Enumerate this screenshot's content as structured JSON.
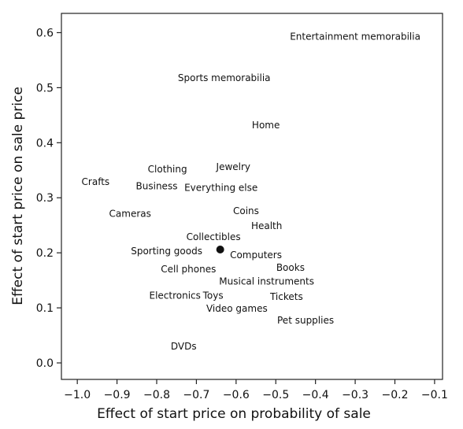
{
  "chart_data": {
    "type": "scatter",
    "title": "",
    "xlabel": "Effect of start price on probability of sale",
    "ylabel": "Effect of start price on sale price",
    "xlim": [
      -1.04,
      -0.08
    ],
    "ylim": [
      -0.03,
      0.635
    ],
    "xticks": [
      -1.0,
      -0.9,
      -0.8,
      -0.7,
      -0.6,
      -0.5,
      -0.4,
      -0.3,
      -0.2,
      -0.1
    ],
    "xtick_labels": [
      "−1.0",
      "−0.9",
      "−0.8",
      "−0.7",
      "−0.6",
      "−0.5",
      "−0.4",
      "−0.3",
      "−0.2",
      "−0.1"
    ],
    "yticks": [
      0.0,
      0.1,
      0.2,
      0.3,
      0.4,
      0.5,
      0.6
    ],
    "ytick_labels": [
      "0.0",
      "0.1",
      "0.2",
      "0.3",
      "0.4",
      "0.5",
      "0.6"
    ],
    "grid": false,
    "marker": {
      "x": -0.64,
      "y": 0.206,
      "color": "#111111"
    },
    "points": [
      {
        "label": "Entertainment memorabilia",
        "x": -0.3,
        "y": 0.593
      },
      {
        "label": "Sports memorabilia",
        "x": -0.63,
        "y": 0.518
      },
      {
        "label": "Home",
        "x": -0.525,
        "y": 0.432
      },
      {
        "label": "Jewelry",
        "x": -0.607,
        "y": 0.356
      },
      {
        "label": "Clothing",
        "x": -0.773,
        "y": 0.352
      },
      {
        "label": "Crafts",
        "x": -0.954,
        "y": 0.329
      },
      {
        "label": "Business",
        "x": -0.8,
        "y": 0.321
      },
      {
        "label": "Everything else",
        "x": -0.638,
        "y": 0.318
      },
      {
        "label": "Coins",
        "x": -0.575,
        "y": 0.276
      },
      {
        "label": "Cameras",
        "x": -0.867,
        "y": 0.271
      },
      {
        "label": "Health",
        "x": -0.523,
        "y": 0.249
      },
      {
        "label": "Collectibles",
        "x": -0.657,
        "y": 0.229
      },
      {
        "label": "Sporting goods",
        "x": -0.775,
        "y": 0.203
      },
      {
        "label": "Computers",
        "x": -0.55,
        "y": 0.196
      },
      {
        "label": "Books",
        "x": -0.463,
        "y": 0.173
      },
      {
        "label": "Cell phones",
        "x": -0.72,
        "y": 0.17
      },
      {
        "label": "Musical instruments",
        "x": -0.523,
        "y": 0.148
      },
      {
        "label": "Electronics",
        "x": -0.754,
        "y": 0.122
      },
      {
        "label": "Toys",
        "x": -0.658,
        "y": 0.122
      },
      {
        "label": "Tickets",
        "x": -0.473,
        "y": 0.12
      },
      {
        "label": "Video games",
        "x": -0.598,
        "y": 0.099
      },
      {
        "label": "Pet supplies",
        "x": -0.425,
        "y": 0.077
      },
      {
        "label": "DVDs",
        "x": -0.732,
        "y": 0.03
      }
    ]
  }
}
